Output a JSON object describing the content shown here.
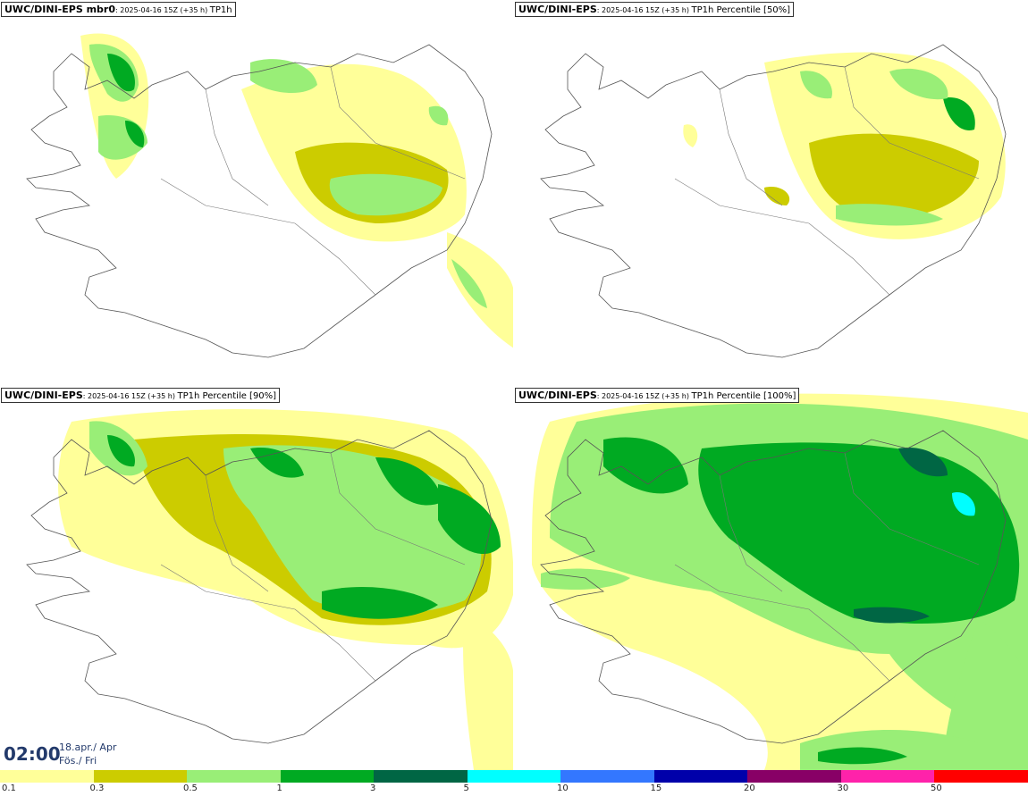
{
  "panels": [
    {
      "source": "UWC/DINI-EPS",
      "suffix": " mbr0",
      "run": ": 2025-04-16 15Z (+35 h) ",
      "param": "TP1h"
    },
    {
      "source": "UWC/DINI-EPS",
      "suffix": "",
      "run": ": 2025-04-16 15Z (+35 h) ",
      "param": "TP1h Percentile [50%]"
    },
    {
      "source": "UWC/DINI-EPS",
      "suffix": "",
      "run": ": 2025-04-16 15Z (+35 h) ",
      "param": "TP1h Percentile [90%]"
    },
    {
      "source": "UWC/DINI-EPS",
      "suffix": "",
      "run": ": 2025-04-16 15Z (+35 h) ",
      "param": "TP1h Percentile [100%]"
    }
  ],
  "valid_time": {
    "time": "02:00",
    "date_line1": "18.apr./ Apr",
    "date_line2": "Fös./ Fri"
  },
  "legend": {
    "colors": [
      "#ffff99",
      "#cccc00",
      "#99ee77",
      "#00aa22",
      "#006644",
      "#00ffff",
      "#3377ff",
      "#0000aa",
      "#880066",
      "#ff22aa",
      "#ff0000"
    ],
    "labels": [
      "0.1",
      "0.3",
      "0.5",
      "1",
      "3",
      "5",
      "10",
      "15",
      "20",
      "30",
      "50"
    ]
  }
}
